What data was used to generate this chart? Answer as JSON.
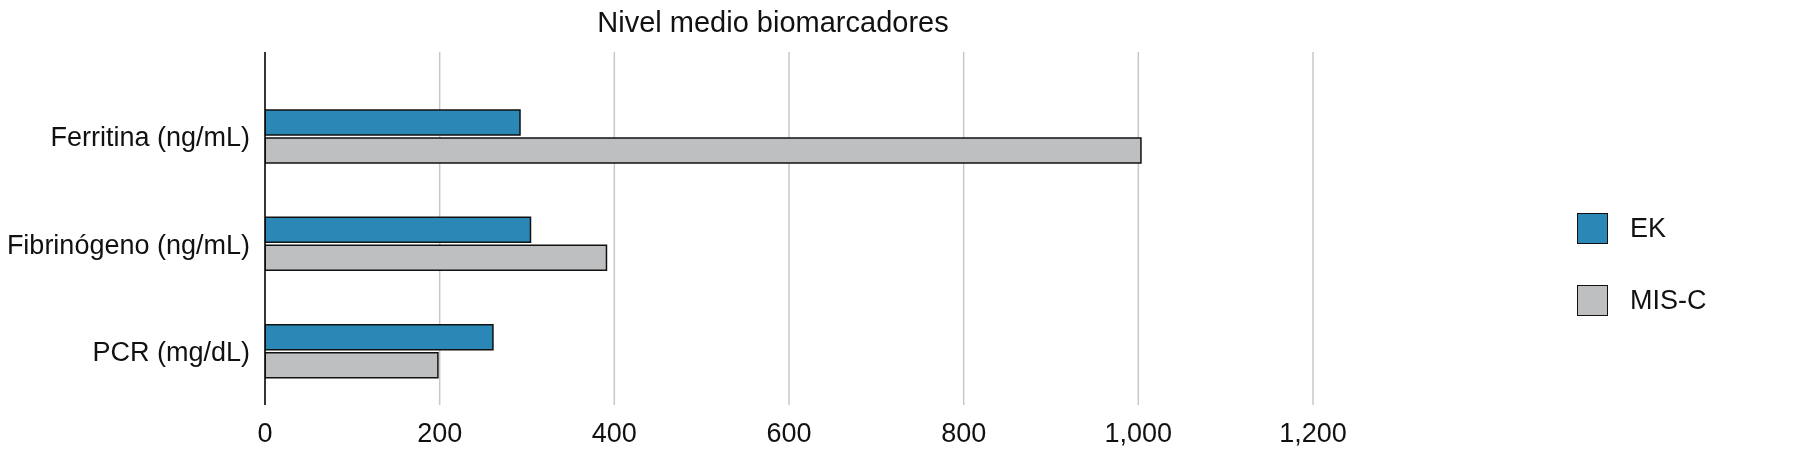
{
  "chart_data": {
    "type": "bar",
    "orientation": "horizontal",
    "title": "Nivel medio biomarcadores",
    "categories": [
      "Ferritina (ng/mL)",
      "Fibrinógeno (ng/mL)",
      "PCR (mg/dL)"
    ],
    "series": [
      {
        "name": "EK",
        "color": "#2b88b6",
        "values": [
          292,
          304,
          261
        ]
      },
      {
        "name": "MIS-C",
        "color": "#bebfc1",
        "values": [
          1003,
          391,
          198
        ]
      }
    ],
    "xlim": [
      0,
      1200
    ],
    "xticks": [
      0,
      200,
      400,
      600,
      800,
      {
        "value": 1000,
        "label": "1,000"
      },
      {
        "value": 1200,
        "label": "1,200"
      }
    ],
    "grid": "x",
    "legend": "right"
  }
}
